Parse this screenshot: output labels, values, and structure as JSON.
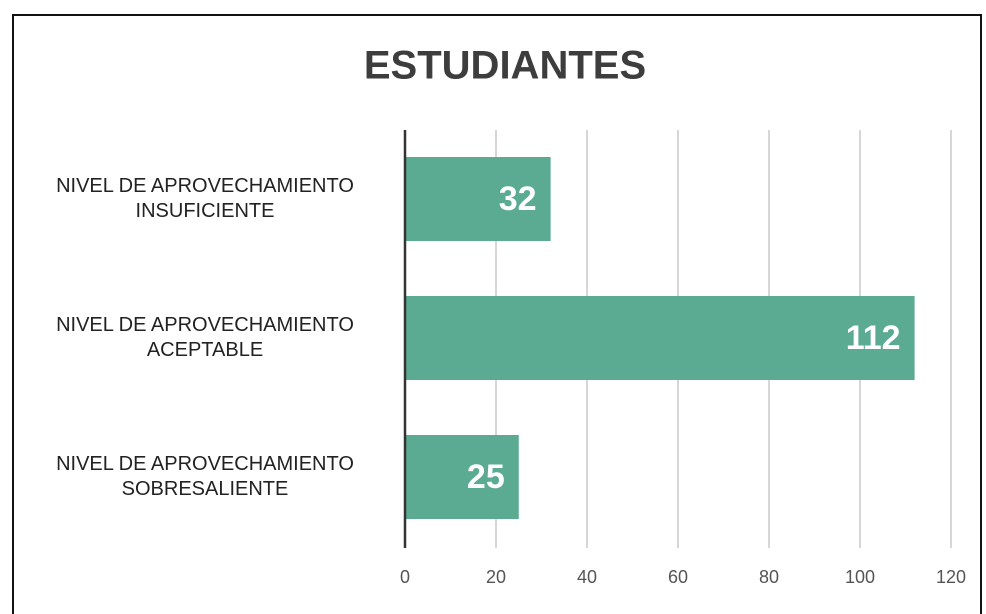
{
  "chart_data": {
    "type": "bar",
    "orientation": "horizontal",
    "title": "ESTUDIANTES",
    "categories": [
      "NIVEL DE APROVECHAMIENTO INSUFICIENTE",
      "NIVEL DE APROVECHAMIENTO ACEPTABLE",
      "NIVEL DE APROVECHAMIENTO SOBRESALIENTE"
    ],
    "values": [
      32,
      112,
      25
    ],
    "color": "#5aab91",
    "xlim": [
      0,
      120
    ],
    "xticks": [
      0,
      20,
      40,
      60,
      80,
      100,
      120
    ],
    "grid": true
  }
}
